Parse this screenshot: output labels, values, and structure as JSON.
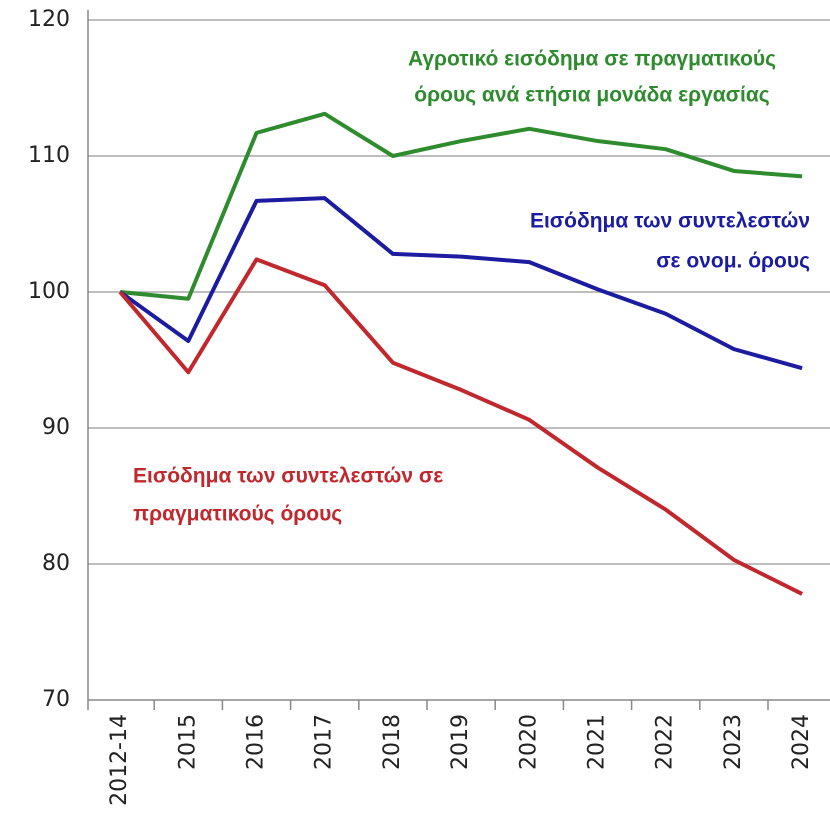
{
  "chart_data": {
    "type": "line",
    "categories": [
      "2012-14",
      "2015",
      "2016",
      "2017",
      "2018",
      "2019",
      "2020",
      "2021",
      "2022",
      "2023",
      "2024"
    ],
    "ylim": [
      70,
      120
    ],
    "yticks": [
      70,
      80,
      90,
      100,
      110,
      120
    ],
    "grid": true,
    "series": [
      {
        "label": [
          "Αγροτικό εισόδημα σε πραγματικούς",
          "όρους ανά ετήσια μονάδα εργασίας"
        ],
        "color": "#2e8b2e",
        "values": [
          100,
          99.5,
          111.7,
          113.1,
          110.0,
          111.1,
          112.0,
          111.1,
          110.5,
          108.9,
          108.5
        ]
      },
      {
        "label": [
          "Εισόδημα των συντελεστών",
          "σε ονομ. όρους"
        ],
        "color": "#1c1ca0",
        "values": [
          100,
          96.4,
          106.7,
          106.9,
          102.8,
          102.6,
          102.2,
          100.2,
          98.4,
          95.8,
          94.4
        ]
      },
      {
        "label": [
          "Εισόδημα των συντελεστών σε",
          "πραγματικούς όρους"
        ],
        "color": "#c0282d",
        "values": [
          100,
          94.1,
          102.4,
          100.5,
          94.8,
          92.8,
          90.6,
          87.1,
          84.0,
          80.3,
          77.8
        ]
      }
    ]
  }
}
